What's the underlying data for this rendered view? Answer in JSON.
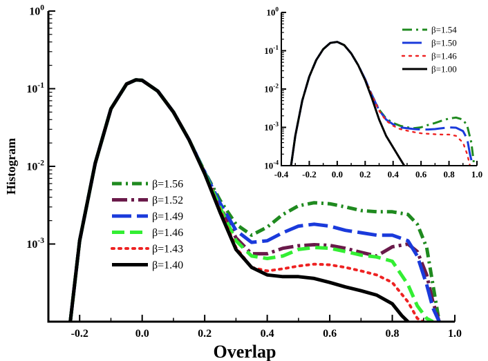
{
  "chart_data": [
    {
      "type": "line",
      "xlabel": "Overlap",
      "ylabel": "Histogram",
      "xlim": [
        -0.3,
        1.0
      ],
      "ylim": [
        0.0001,
        1
      ],
      "yscale": "log",
      "xticks": [
        {
          "value": -0.2,
          "label": "-0.2"
        },
        {
          "value": 0.0,
          "label": "0.0"
        },
        {
          "value": 0.2,
          "label": "0.2"
        },
        {
          "value": 0.4,
          "label": "0.4"
        },
        {
          "value": 0.6,
          "label": "0.6"
        },
        {
          "value": 0.8,
          "label": "0.8"
        },
        {
          "value": 1.0,
          "label": "1.0"
        }
      ],
      "yticks": [
        {
          "value": 0.001,
          "base": "10",
          "exp": "-3"
        },
        {
          "value": 0.01,
          "base": "10",
          "exp": "-2"
        },
        {
          "value": 0.1,
          "base": "10",
          "exp": "-1"
        },
        {
          "value": 1,
          "base": "10",
          "exp": "0"
        }
      ],
      "legend_position": "center-left",
      "series": [
        {
          "name": "β=1.56",
          "color": "#1f8a1f",
          "dash": "dashdot",
          "x": [
            -0.23,
            -0.2,
            -0.15,
            -0.1,
            -0.05,
            -0.02,
            0.0,
            0.05,
            0.1,
            0.15,
            0.2,
            0.25,
            0.3,
            0.35,
            0.4,
            0.45,
            0.5,
            0.55,
            0.6,
            0.65,
            0.7,
            0.75,
            0.8,
            0.85,
            0.88,
            0.91,
            0.93,
            0.95
          ],
          "y": [
            0.0001,
            0.0011,
            0.011,
            0.055,
            0.115,
            0.13,
            0.128,
            0.093,
            0.05,
            0.022,
            0.0085,
            0.0036,
            0.0018,
            0.0013,
            0.00165,
            0.0024,
            0.0031,
            0.0034,
            0.0033,
            0.003,
            0.0027,
            0.0026,
            0.0026,
            0.0024,
            0.0018,
            0.0009,
            0.0003,
            0.0001
          ]
        },
        {
          "name": "β=1.52",
          "color": "#6a1a4a",
          "dash": "dashdot2",
          "x": [
            -0.23,
            -0.2,
            -0.15,
            -0.1,
            -0.05,
            -0.02,
            0.0,
            0.05,
            0.1,
            0.15,
            0.2,
            0.25,
            0.3,
            0.35,
            0.4,
            0.45,
            0.5,
            0.55,
            0.6,
            0.65,
            0.7,
            0.75,
            0.8,
            0.85,
            0.88,
            0.91,
            0.93,
            0.95
          ],
          "y": [
            0.0001,
            0.0011,
            0.011,
            0.055,
            0.115,
            0.13,
            0.128,
            0.093,
            0.05,
            0.022,
            0.0083,
            0.003,
            0.0012,
            0.00075,
            0.00075,
            0.00088,
            0.00095,
            0.00098,
            0.00096,
            0.00088,
            0.00078,
            0.0007,
            0.00092,
            0.001,
            0.0008,
            0.0004,
            0.00018,
            0.0001
          ]
        },
        {
          "name": "β=1.49",
          "color": "#1a3adb",
          "dash": "longdash",
          "x": [
            -0.23,
            -0.2,
            -0.15,
            -0.1,
            -0.05,
            -0.02,
            0.0,
            0.05,
            0.1,
            0.15,
            0.2,
            0.25,
            0.3,
            0.35,
            0.4,
            0.45,
            0.5,
            0.55,
            0.6,
            0.65,
            0.7,
            0.75,
            0.8,
            0.85,
            0.88,
            0.91,
            0.93,
            0.95
          ],
          "y": [
            0.0001,
            0.0011,
            0.011,
            0.055,
            0.115,
            0.13,
            0.128,
            0.093,
            0.05,
            0.022,
            0.0084,
            0.0033,
            0.0015,
            0.00105,
            0.0011,
            0.0014,
            0.0017,
            0.0018,
            0.0017,
            0.0015,
            0.0014,
            0.0013,
            0.0013,
            0.0011,
            0.0007,
            0.0003,
            0.00015,
            0.0001
          ]
        },
        {
          "name": "β=1.46",
          "color": "#33ee33",
          "dash": "dash",
          "x": [
            -0.23,
            -0.2,
            -0.15,
            -0.1,
            -0.05,
            -0.02,
            0.0,
            0.05,
            0.1,
            0.15,
            0.2,
            0.25,
            0.3,
            0.35,
            0.4,
            0.45,
            0.5,
            0.55,
            0.6,
            0.65,
            0.7,
            0.75,
            0.8,
            0.85,
            0.88,
            0.91,
            0.93
          ],
          "y": [
            0.0001,
            0.0011,
            0.011,
            0.055,
            0.115,
            0.13,
            0.128,
            0.093,
            0.05,
            0.022,
            0.0082,
            0.0029,
            0.0011,
            0.0007,
            0.00065,
            0.0007,
            0.00085,
            0.0009,
            0.00088,
            0.0008,
            0.00072,
            0.00068,
            0.0006,
            0.0003,
            0.00016,
            0.00011,
            0.0001
          ]
        },
        {
          "name": "β=1.43",
          "color": "#ee2222",
          "dash": "dot",
          "x": [
            -0.23,
            -0.2,
            -0.15,
            -0.1,
            -0.05,
            -0.02,
            0.0,
            0.05,
            0.1,
            0.15,
            0.2,
            0.25,
            0.3,
            0.35,
            0.4,
            0.45,
            0.5,
            0.55,
            0.6,
            0.65,
            0.7,
            0.75,
            0.8,
            0.85,
            0.88,
            0.9
          ],
          "y": [
            0.0001,
            0.0011,
            0.011,
            0.055,
            0.115,
            0.13,
            0.128,
            0.093,
            0.05,
            0.022,
            0.0081,
            0.0027,
            0.0009,
            0.0005,
            0.00045,
            0.00048,
            0.00052,
            0.00055,
            0.00054,
            0.0005,
            0.00045,
            0.0004,
            0.00032,
            0.00018,
            0.00011,
            0.0001
          ]
        },
        {
          "name": "β=1.40",
          "color": "#000000",
          "dash": "solid",
          "x": [
            -0.23,
            -0.2,
            -0.15,
            -0.1,
            -0.05,
            -0.02,
            0.0,
            0.05,
            0.1,
            0.15,
            0.2,
            0.25,
            0.3,
            0.35,
            0.4,
            0.45,
            0.5,
            0.55,
            0.6,
            0.65,
            0.7,
            0.75,
            0.8,
            0.83,
            0.85
          ],
          "y": [
            0.0001,
            0.0011,
            0.011,
            0.055,
            0.115,
            0.13,
            0.128,
            0.093,
            0.05,
            0.022,
            0.008,
            0.0025,
            0.00085,
            0.0005,
            0.0004,
            0.00038,
            0.00038,
            0.00036,
            0.00032,
            0.00028,
            0.00025,
            0.00022,
            0.00017,
            0.00012,
            0.0001
          ]
        }
      ]
    },
    {
      "type": "line",
      "inset": true,
      "xlim": [
        -0.4,
        1.0
      ],
      "ylim": [
        0.0001,
        1
      ],
      "yscale": "log",
      "xticks": [
        {
          "value": -0.4,
          "label": "-0.4"
        },
        {
          "value": -0.2,
          "label": "-0.2"
        },
        {
          "value": 0.0,
          "label": "0.0"
        },
        {
          "value": 0.2,
          "label": "0.2"
        },
        {
          "value": 0.4,
          "label": "0.4"
        },
        {
          "value": 0.6,
          "label": "0.6"
        },
        {
          "value": 0.8,
          "label": "0.8"
        },
        {
          "value": 1.0,
          "label": "1.0"
        }
      ],
      "yticks": [
        {
          "value": 0.0001,
          "base": "10",
          "exp": "-4"
        },
        {
          "value": 0.001,
          "base": "10",
          "exp": "-3"
        },
        {
          "value": 0.01,
          "base": "10",
          "exp": "-2"
        },
        {
          "value": 0.1,
          "base": "10",
          "exp": "-1"
        },
        {
          "value": 1,
          "base": "10",
          "exp": "0"
        }
      ],
      "legend_position": "top-right",
      "series": [
        {
          "name": "β=1.54",
          "color": "#1f8a1f",
          "dash": "dashdot",
          "x": [
            -0.33,
            -0.3,
            -0.25,
            -0.2,
            -0.15,
            -0.1,
            -0.05,
            0.0,
            0.05,
            0.1,
            0.15,
            0.2,
            0.25,
            0.3,
            0.35,
            0.4,
            0.45,
            0.5,
            0.55,
            0.6,
            0.65,
            0.7,
            0.75,
            0.8,
            0.85,
            0.9,
            0.93,
            0.96,
            0.98
          ],
          "y": [
            0.0001,
            0.0006,
            0.005,
            0.021,
            0.057,
            0.11,
            0.16,
            0.17,
            0.14,
            0.085,
            0.042,
            0.018,
            0.0068,
            0.0029,
            0.0017,
            0.0013,
            0.0011,
            0.001,
            0.00095,
            0.001,
            0.00115,
            0.0013,
            0.0015,
            0.0017,
            0.0018,
            0.0016,
            0.0011,
            0.0004,
            0.0001
          ]
        },
        {
          "name": "β=1.50",
          "color": "#1a3adb",
          "dash": "longdash",
          "x": [
            -0.33,
            -0.3,
            -0.25,
            -0.2,
            -0.15,
            -0.1,
            -0.05,
            0.0,
            0.05,
            0.1,
            0.15,
            0.2,
            0.25,
            0.3,
            0.35,
            0.4,
            0.45,
            0.5,
            0.55,
            0.6,
            0.65,
            0.7,
            0.75,
            0.8,
            0.85,
            0.9,
            0.93,
            0.95,
            0.97
          ],
          "y": [
            0.0001,
            0.0006,
            0.005,
            0.021,
            0.057,
            0.11,
            0.16,
            0.17,
            0.14,
            0.085,
            0.042,
            0.018,
            0.0067,
            0.0028,
            0.0016,
            0.0012,
            0.001,
            0.00095,
            0.0009,
            0.00088,
            0.00088,
            0.0009,
            0.00095,
            0.001,
            0.00098,
            0.0008,
            0.0005,
            0.0002,
            0.0001
          ]
        },
        {
          "name": "β=1.46",
          "color": "#ee2222",
          "dash": "dot",
          "x": [
            -0.33,
            -0.3,
            -0.25,
            -0.2,
            -0.15,
            -0.1,
            -0.05,
            0.0,
            0.05,
            0.1,
            0.15,
            0.2,
            0.25,
            0.3,
            0.35,
            0.4,
            0.45,
            0.5,
            0.55,
            0.6,
            0.65,
            0.7,
            0.75,
            0.8,
            0.85,
            0.9,
            0.93,
            0.95
          ],
          "y": [
            0.0001,
            0.0006,
            0.005,
            0.021,
            0.057,
            0.11,
            0.16,
            0.17,
            0.14,
            0.085,
            0.042,
            0.018,
            0.0066,
            0.0027,
            0.0015,
            0.0011,
            0.0009,
            0.00082,
            0.00075,
            0.0007,
            0.00068,
            0.00066,
            0.00065,
            0.00065,
            0.0006,
            0.0004,
            0.0002,
            0.0001
          ]
        },
        {
          "name": "β=1.00",
          "color": "#000000",
          "dash": "solid",
          "x": [
            -0.33,
            -0.3,
            -0.25,
            -0.2,
            -0.15,
            -0.1,
            -0.05,
            0.0,
            0.05,
            0.1,
            0.15,
            0.2,
            0.25,
            0.3,
            0.35,
            0.4,
            0.45,
            0.48
          ],
          "y": [
            0.0001,
            0.0006,
            0.005,
            0.021,
            0.057,
            0.11,
            0.16,
            0.17,
            0.14,
            0.085,
            0.042,
            0.017,
            0.0055,
            0.0016,
            0.0006,
            0.0003,
            0.00015,
            0.0001
          ]
        }
      ]
    }
  ]
}
